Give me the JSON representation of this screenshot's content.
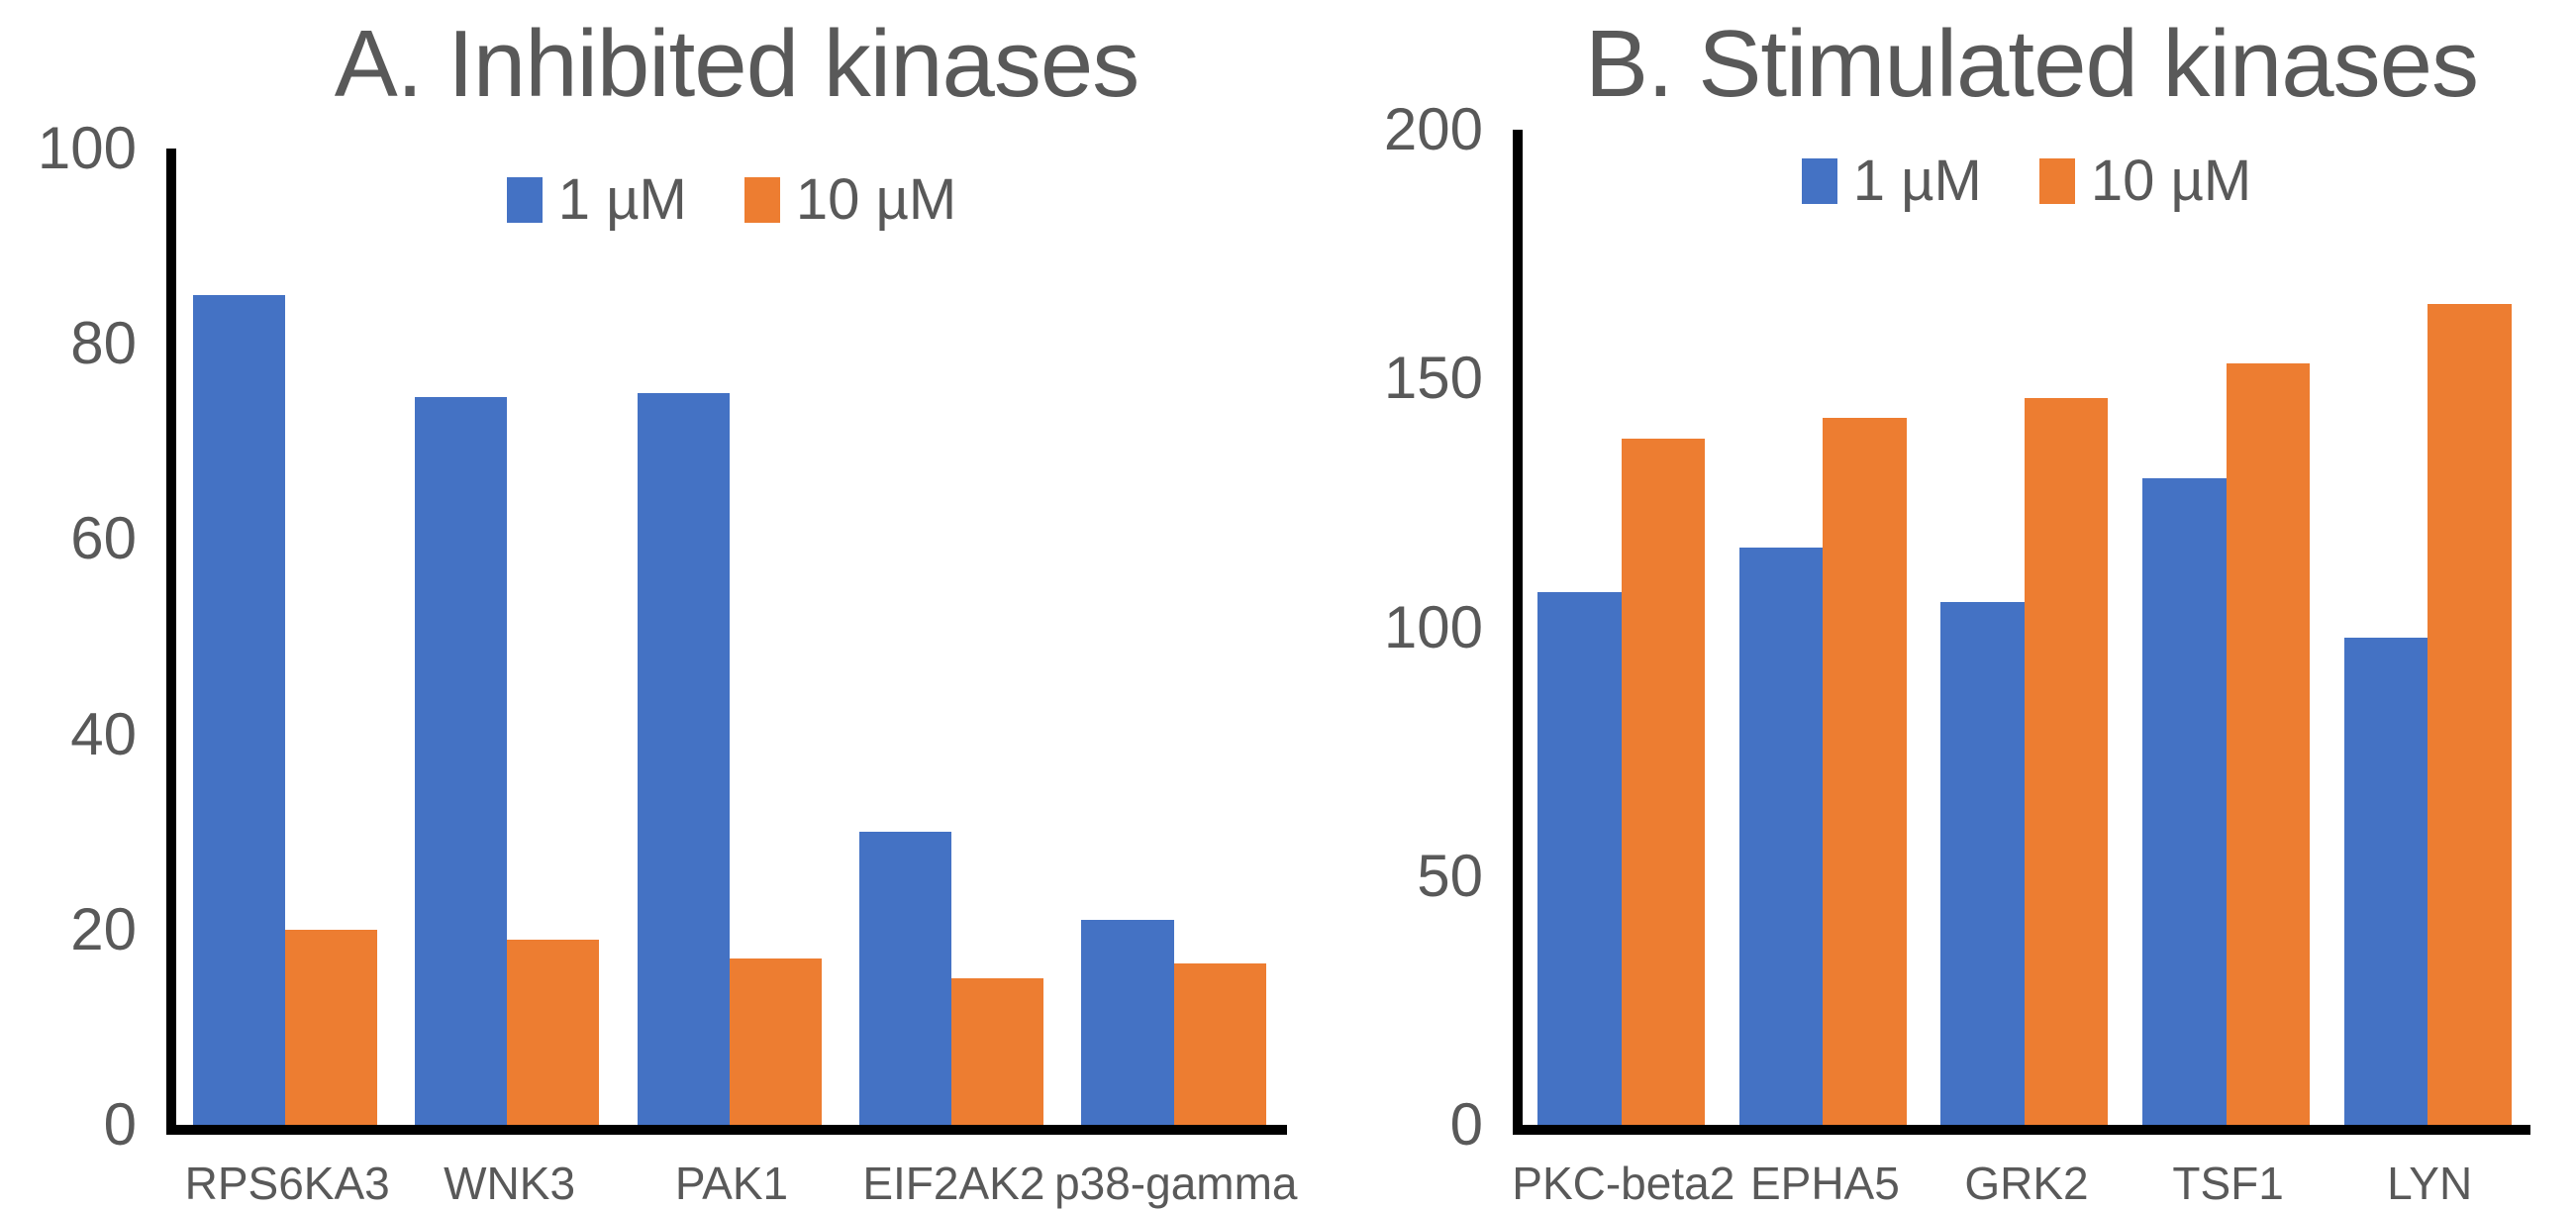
{
  "colors": {
    "series_1uM": "#4472C4",
    "series_10uM": "#ED7D31",
    "text": "#595959",
    "axis": "#000000",
    "background": "#FFFFFF"
  },
  "chart_data": [
    {
      "type": "bar",
      "title": "A. Inhibited kinases",
      "categories": [
        "RPS6KA3",
        "WNK3",
        "PAK1",
        "EIF2AK2",
        "p38-gamma"
      ],
      "series": [
        {
          "name": "1 µM",
          "color": "#4472C4",
          "values": [
            85,
            74.5,
            75,
            30,
            21
          ]
        },
        {
          "name": "10 µM",
          "color": "#ED7D31",
          "values": [
            20,
            19,
            17,
            15,
            16.5
          ]
        }
      ],
      "xlabel": "",
      "ylabel": "",
      "ylim": [
        0,
        100
      ],
      "yticks": [
        0,
        20,
        40,
        60,
        80,
        100
      ],
      "grid": false,
      "legend_position": "top-center"
    },
    {
      "type": "bar",
      "title": "B. Stimulated kinases",
      "categories": [
        "PKC-beta2",
        "EPHA5",
        "GRK2",
        "TSF1",
        "LYN"
      ],
      "series": [
        {
          "name": "1 µM",
          "color": "#4472C4",
          "values": [
            107,
            116,
            105,
            130,
            98
          ]
        },
        {
          "name": "10 µM",
          "color": "#ED7D31",
          "values": [
            138,
            142,
            146,
            153,
            165
          ]
        }
      ],
      "xlabel": "",
      "ylabel": "",
      "ylim": [
        0,
        200
      ],
      "yticks": [
        0,
        50,
        100,
        150,
        200
      ],
      "grid": false,
      "legend_position": "top-center"
    }
  ]
}
